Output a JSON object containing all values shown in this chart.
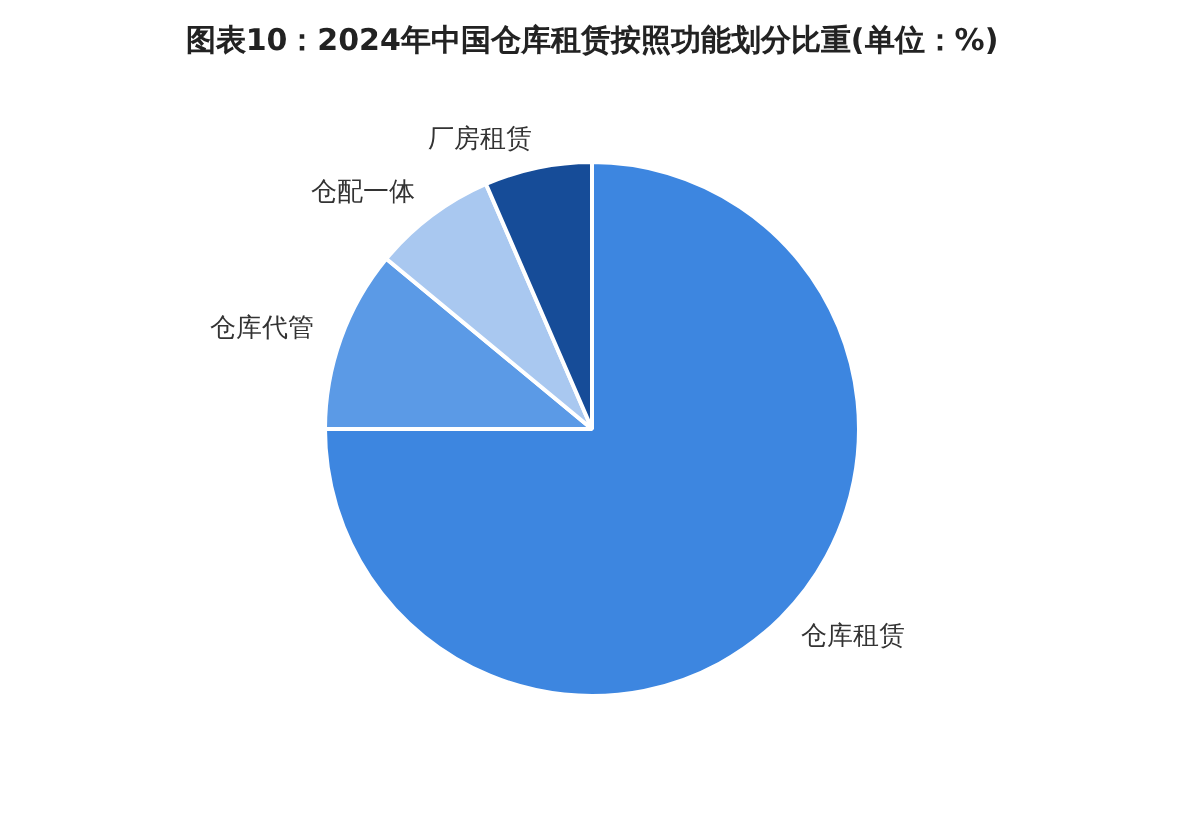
{
  "chart_data": {
    "type": "pie",
    "title": "图表10：2024年中国仓库租赁按照功能划分比重(单位：%)",
    "categories": [
      "仓库租赁",
      "仓库代管",
      "仓配一体",
      "厂房租赁"
    ],
    "values": [
      75,
      11,
      7.5,
      6.5
    ],
    "colors": [
      "#3d86e0",
      "#5b9ae6",
      "#a9c8f0",
      "#164c98"
    ],
    "legend": false
  }
}
